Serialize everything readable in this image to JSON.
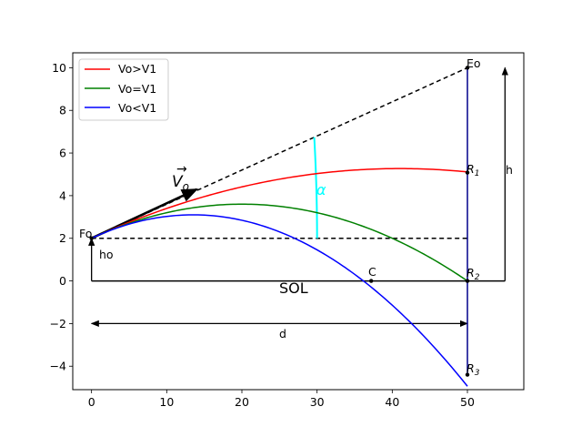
{
  "chart_data": {
    "type": "line",
    "title": "",
    "xlabel": "",
    "ylabel": "",
    "xlim": [
      -2.5,
      57.5
    ],
    "ylim": [
      -5.1,
      10.7
    ],
    "xticks": [
      0,
      10,
      20,
      30,
      40,
      50
    ],
    "yticks": [
      -4,
      -2,
      0,
      2,
      4,
      6,
      8,
      10
    ],
    "xtick_labels": [
      "0",
      "10",
      "20",
      "30",
      "40",
      "50"
    ],
    "ytick_labels": [
      "−4",
      "−2",
      "0",
      "2",
      "4",
      "6",
      "8",
      "10"
    ],
    "legend": {
      "position": "top-left",
      "entries": [
        "Vo>V1",
        "Vo=V1",
        "Vo<V1"
      ]
    },
    "series": [
      {
        "name": "Vo>V1",
        "color": "#ff0000",
        "curve": {
          "x0": 0,
          "y0": 2,
          "xv": 41,
          "yv": 5.27,
          "x_end": 50
        }
      },
      {
        "name": "Vo=V1",
        "color": "#008000",
        "curve": {
          "x0": 0,
          "y0": 2,
          "xv": 20,
          "yv": 3.6,
          "x_end": 50
        }
      },
      {
        "name": "Vo<V1",
        "color": "#0000ff",
        "curve": {
          "x0": 0,
          "y0": 2,
          "xv": 13.5,
          "yv": 3.1,
          "x_end": 50
        }
      }
    ],
    "guides": {
      "aim_line": {
        "from": [
          0,
          2
        ],
        "to": [
          50,
          10
        ],
        "style": "dashed",
        "color": "#000000"
      },
      "horizontal_line": {
        "from": [
          0,
          2
        ],
        "to": [
          50,
          2
        ],
        "style": "dashed",
        "color": "#000000"
      },
      "ground_line": {
        "from": [
          0,
          0
        ],
        "to": [
          55,
          0
        ],
        "color": "#000000"
      },
      "target_line": {
        "from": [
          50,
          10
        ],
        "to": [
          50,
          -4.4
        ],
        "color": "#00008b"
      },
      "h_arrow": {
        "x": 55,
        "from": 0,
        "to": 10
      },
      "ho_arrow": {
        "x": 0,
        "from": 0,
        "to": 2
      },
      "d_arrow": {
        "y": -2,
        "from": 0,
        "to": 50
      },
      "velocity_arrow": {
        "from": [
          0,
          2
        ],
        "to": [
          14,
          4.3
        ]
      },
      "angle_arc": {
        "center": [
          0,
          2
        ],
        "theta_start_deg": 0,
        "theta_end_deg": 9.09,
        "radius": 30,
        "color": "#00ffff"
      }
    },
    "points": [
      {
        "name": "Fo",
        "x": 0,
        "y": 2
      },
      {
        "name": "Eo",
        "x": 50,
        "y": 10
      },
      {
        "name": "R1",
        "x": 50,
        "y": 5.08
      },
      {
        "name": "R2",
        "x": 50,
        "y": 0
      },
      {
        "name": "R3",
        "x": 50,
        "y": -4.4
      },
      {
        "name": "C",
        "x": 37.2,
        "y": 0
      }
    ],
    "annotations": {
      "fo": "Fo",
      "eo": "Eo",
      "r1": "R",
      "r1_sub": "1",
      "r2": "R",
      "r2_sub": "2",
      "r3": "R",
      "r3_sub": "3",
      "c": "C",
      "h": "h",
      "ho": "ho",
      "d": "d",
      "sol": "SOL",
      "alpha": "α",
      "vo": "V",
      "vo_sub": "o",
      "vo_arrow": "→"
    }
  }
}
